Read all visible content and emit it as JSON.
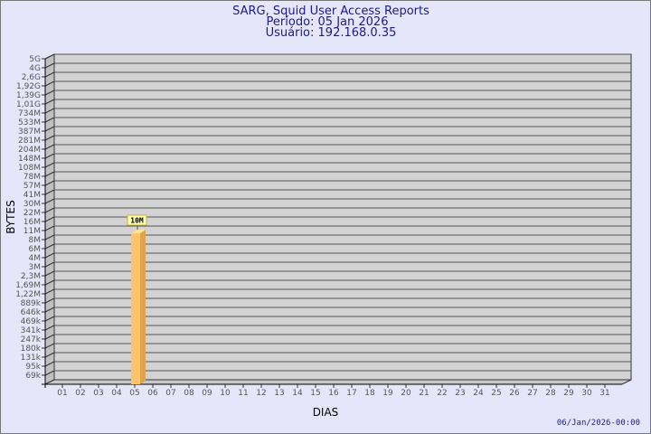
{
  "chart_data": {
    "type": "bar",
    "title": "SARG, Squid User Access Reports",
    "subtitle_period": "Período: 05 Jan 2026",
    "subtitle_user": "Usuário: 192.168.0.35",
    "xlabel": "DIAS",
    "ylabel": "BYTES",
    "y_scale": "log",
    "grid": true,
    "y_ticks": [
      "5G",
      "4G",
      "2,6G",
      "1,92G",
      "1,39G",
      "1,01G",
      "734M",
      "533M",
      "387M",
      "281M",
      "204M",
      "148M",
      "108M",
      "78M",
      "57M",
      "41M",
      "30M",
      "22M",
      "16M",
      "11M",
      "8M",
      "6M",
      "4M",
      "3M",
      "2,3M",
      "1,69M",
      "1,22M",
      "889k",
      "646k",
      "469k",
      "341k",
      "247k",
      "180k",
      "131k",
      "95k",
      "69k"
    ],
    "categories": [
      "01",
      "02",
      "03",
      "04",
      "05",
      "06",
      "07",
      "08",
      "09",
      "10",
      "11",
      "12",
      "13",
      "14",
      "15",
      "16",
      "17",
      "18",
      "19",
      "20",
      "21",
      "22",
      "23",
      "24",
      "25",
      "26",
      "27",
      "28",
      "29",
      "30",
      "31"
    ],
    "bars": [
      {
        "category": "05",
        "value": 10000000,
        "label": "10M"
      }
    ],
    "colors": {
      "background": "#e6e6fa",
      "plot": "#d3d3d3",
      "bar_front": "#fdc46a",
      "bar_side": "#e0a24a",
      "bar_top": "#ffe49a",
      "title": "#1a1a8c"
    }
  },
  "footer": {
    "timestamp": "06/Jan/2026-00:00"
  }
}
